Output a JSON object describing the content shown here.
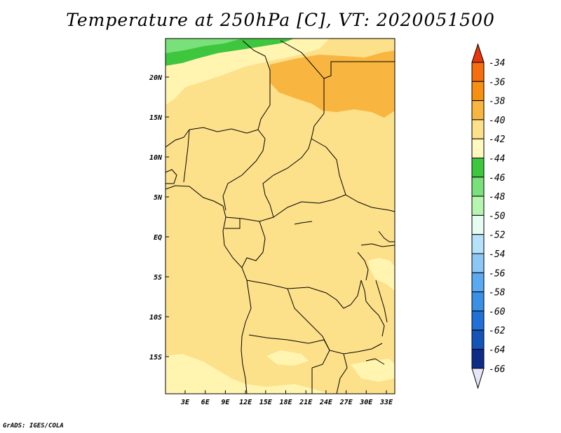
{
  "title": "Temperature at 250hPa [C], VT: 2020051500",
  "credit": "GrADS: IGES/COLA",
  "map": {
    "lat_labels": [
      "20N",
      "15N",
      "10N",
      "5N",
      "EQ",
      "5S",
      "10S",
      "15S"
    ],
    "lon_labels": [
      "3E",
      "6E",
      "9E",
      "12E",
      "15E",
      "18E",
      "21E",
      "24E",
      "27E",
      "30E",
      "33E"
    ],
    "field_colors": {
      "base": "#fde08a",
      "warm_band": "#f8b640",
      "light_yellow": "#fff4b0",
      "green": "#3ec63e",
      "light_green": "#79e07a"
    }
  },
  "colorbar": {
    "levels": [
      "-34",
      "-36",
      "-38",
      "-40",
      "-42",
      "-44",
      "-46",
      "-48",
      "-50",
      "-52",
      "-54",
      "-56",
      "-58",
      "-60",
      "-62",
      "-64",
      "-66"
    ],
    "top_color": "#e83510",
    "bottom_color": "#e6e6fa",
    "colors": [
      "#f56d0e",
      "#f78f10",
      "#f8b640",
      "#fde08a",
      "#fff9c0",
      "#3ec63e",
      "#79e07a",
      "#b5f5b0",
      "#e6fbf2",
      "#b5e1fb",
      "#8cc8f5",
      "#5aaaf2",
      "#3a90e6",
      "#2170d8",
      "#1454b8",
      "#0d2c88",
      "#07106a"
    ]
  }
}
